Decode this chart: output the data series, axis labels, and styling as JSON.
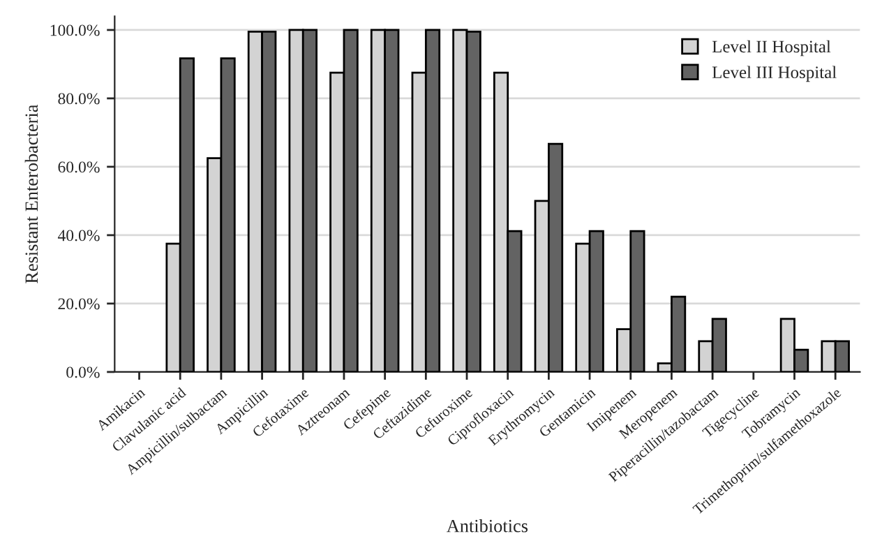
{
  "chart_data": {
    "type": "bar",
    "xlabel": "Antibiotics",
    "ylabel": "Resistant Enterobacteria",
    "categories": [
      "Amikacin",
      "Clavulanic acid",
      "Ampicillin/sulbactam",
      "Ampicillin",
      "Cefotaxime",
      "Aztreonam",
      "Cefepime",
      "Ceftazidime",
      "Cefuroxime",
      "Ciprofloxacin",
      "Erythromycin",
      "Gentamicin",
      "Imipenem",
      "Meropenem",
      "Piperacillin/tazobactam",
      "Tigecycline",
      "Tobramycin",
      "Trimethoprim/sulfamethoxazole"
    ],
    "series": [
      {
        "name": "Level II Hospital",
        "color": "#d3d3d3",
        "values": [
          0,
          37.5,
          62.5,
          99.5,
          100,
          87.5,
          100,
          87.5,
          100,
          87.5,
          50,
          37.5,
          12.5,
          2.5,
          9,
          0,
          15.5,
          9
        ]
      },
      {
        "name": "Level III Hospital",
        "color": "#636363",
        "values": [
          0,
          91.7,
          91.7,
          99.5,
          100,
          100,
          100,
          100,
          99.5,
          41.2,
          66.7,
          41.2,
          41.2,
          22,
          15.5,
          0,
          6.5,
          9
        ]
      }
    ],
    "ylim": [
      0,
      104
    ],
    "yticks": [
      {
        "value": 0,
        "label": "0.0%"
      },
      {
        "value": 20,
        "label": "20.0%"
      },
      {
        "value": 40,
        "label": "40.0%"
      },
      {
        "value": 60,
        "label": "60.0%"
      },
      {
        "value": 80,
        "label": "80.0%"
      },
      {
        "value": 100,
        "label": "100.0%"
      }
    ],
    "grid": "y",
    "legend": "top right"
  }
}
